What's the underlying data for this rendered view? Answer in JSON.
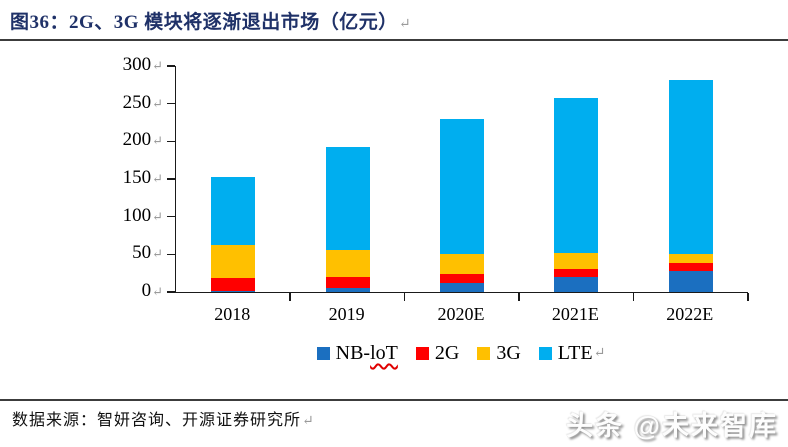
{
  "header": {
    "title": "图36：2G、3G 模块将逐渐退出市场（亿元）",
    "title_color": "#1F3168"
  },
  "glyphs": {
    "return_arrow": "↵"
  },
  "chart_data": {
    "type": "bar",
    "stacked": true,
    "title": "图36：2G、3G 模块将逐渐退出市场（亿元）",
    "unit": "亿元",
    "categories": [
      "2018",
      "2019",
      "2020E",
      "2021E",
      "2022E"
    ],
    "series": [
      {
        "name": "NB-IoT",
        "color": "#1B6FC0",
        "values": [
          2,
          5,
          12,
          20,
          28
        ]
      },
      {
        "name": "2G",
        "color": "#FF0000",
        "values": [
          16,
          15,
          12,
          11,
          10
        ]
      },
      {
        "name": "3G",
        "color": "#FFC000",
        "values": [
          45,
          36,
          27,
          21,
          13
        ]
      },
      {
        "name": "LTE",
        "color": "#00AEEF",
        "values": [
          90,
          136,
          179,
          205,
          230
        ]
      }
    ],
    "totals": [
      153,
      192,
      230,
      257,
      281
    ],
    "ylim": [
      0,
      300
    ],
    "yticks": [
      0,
      50,
      100,
      150,
      200,
      250,
      300
    ],
    "grid": false,
    "legend_position": "bottom",
    "legend_display": [
      {
        "parts": [
          {
            "text": "NB-"
          },
          {
            "text": "loT",
            "squiggle": true
          }
        ]
      },
      {
        "parts": [
          {
            "text": "2G"
          }
        ]
      },
      {
        "parts": [
          {
            "text": "3G"
          }
        ]
      },
      {
        "parts": [
          {
            "text": "LTE"
          }
        ]
      }
    ]
  },
  "footer": {
    "source": "数据来源：智妍咨询、开源证券研究所",
    "watermark": "头条 @未来智库"
  }
}
